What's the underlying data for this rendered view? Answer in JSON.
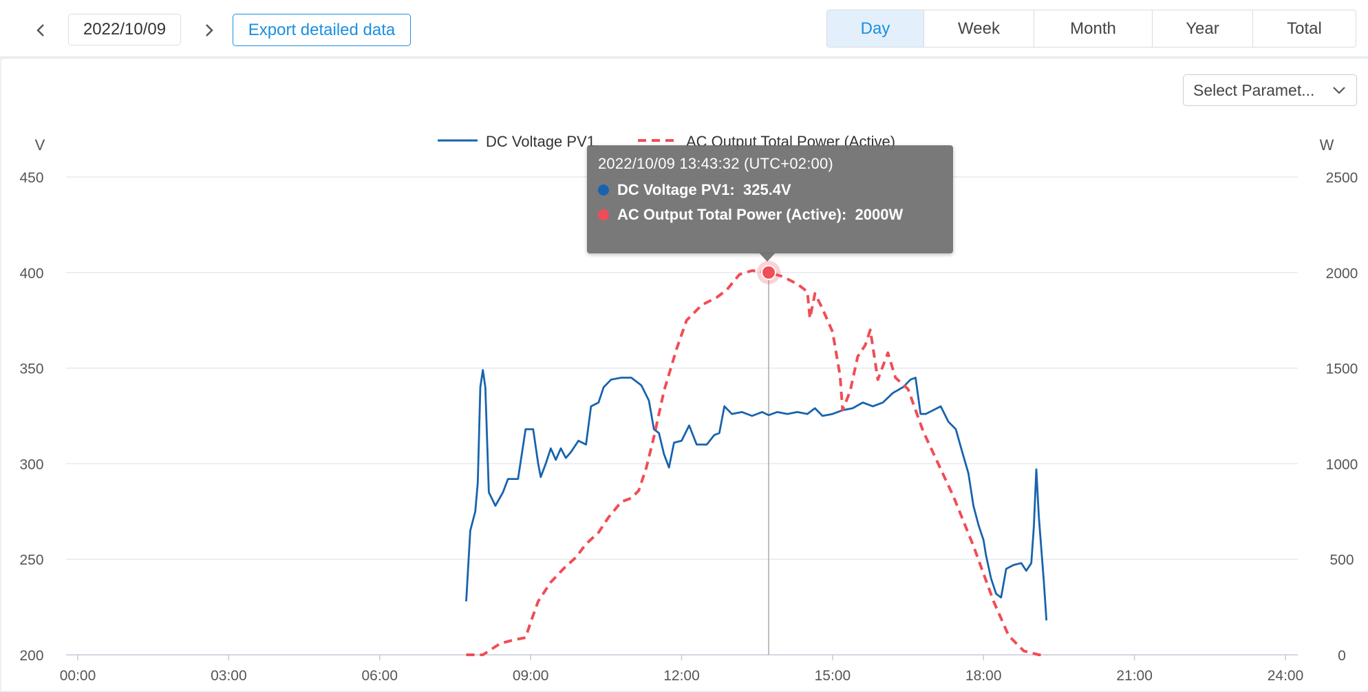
{
  "toolbar": {
    "date": "2022/10/09",
    "export_label": "Export detailed data",
    "period_tabs": [
      "Day",
      "Week",
      "Month",
      "Year",
      "Total"
    ],
    "active_period": "Day"
  },
  "param_select": {
    "label": "Select Paramet..."
  },
  "icons": {
    "prev": "chevron-left-icon",
    "next": "chevron-right-icon",
    "dropdown": "chevron-down-icon"
  },
  "chart_data": {
    "type": "line",
    "left_axis": {
      "unit": "V",
      "ticks": [
        450,
        400,
        350,
        300,
        250,
        200
      ],
      "ylim": [
        200,
        450
      ]
    },
    "right_axis": {
      "unit": "W",
      "ticks": [
        2500,
        2000,
        1500,
        1000,
        500,
        0
      ],
      "ylim": [
        0,
        2500
      ]
    },
    "x_axis": {
      "ticks": [
        "00:00",
        "03:00",
        "06:00",
        "09:00",
        "12:00",
        "15:00",
        "18:00",
        "21:00",
        "24:00"
      ],
      "xlim_hours": [
        0,
        24
      ]
    },
    "grid": true,
    "legend_position": "top-center",
    "series": [
      {
        "name": "DC Voltage PV1",
        "axis": "left",
        "color": "#1763ad",
        "style": "solid",
        "points": [
          [
            7.72,
            228
          ],
          [
            7.8,
            265
          ],
          [
            7.9,
            275
          ],
          [
            7.95,
            290
          ],
          [
            8.0,
            340
          ],
          [
            8.05,
            349
          ],
          [
            8.1,
            340
          ],
          [
            8.17,
            285
          ],
          [
            8.3,
            278
          ],
          [
            8.45,
            285
          ],
          [
            8.55,
            292
          ],
          [
            8.75,
            292
          ],
          [
            8.9,
            318
          ],
          [
            9.05,
            318
          ],
          [
            9.15,
            300
          ],
          [
            9.2,
            293
          ],
          [
            9.3,
            300
          ],
          [
            9.4,
            308
          ],
          [
            9.5,
            302
          ],
          [
            9.6,
            308
          ],
          [
            9.7,
            303
          ],
          [
            9.8,
            306
          ],
          [
            9.95,
            312
          ],
          [
            10.1,
            310
          ],
          [
            10.2,
            330
          ],
          [
            10.35,
            332
          ],
          [
            10.45,
            340
          ],
          [
            10.6,
            344
          ],
          [
            10.8,
            345
          ],
          [
            11.0,
            345
          ],
          [
            11.2,
            341
          ],
          [
            11.35,
            333
          ],
          [
            11.45,
            318
          ],
          [
            11.55,
            316
          ],
          [
            11.65,
            305
          ],
          [
            11.75,
            298
          ],
          [
            11.85,
            311
          ],
          [
            12.0,
            312
          ],
          [
            12.15,
            320
          ],
          [
            12.3,
            310
          ],
          [
            12.5,
            310
          ],
          [
            12.65,
            315
          ],
          [
            12.75,
            316
          ],
          [
            12.85,
            330
          ],
          [
            13.0,
            326
          ],
          [
            13.2,
            327
          ],
          [
            13.4,
            325
          ],
          [
            13.6,
            327
          ],
          [
            13.73,
            325.4
          ],
          [
            13.9,
            327
          ],
          [
            14.1,
            326
          ],
          [
            14.3,
            327
          ],
          [
            14.5,
            326
          ],
          [
            14.65,
            329
          ],
          [
            14.8,
            325
          ],
          [
            15.0,
            326
          ],
          [
            15.2,
            328
          ],
          [
            15.4,
            329
          ],
          [
            15.6,
            332
          ],
          [
            15.8,
            330
          ],
          [
            16.0,
            332
          ],
          [
            16.2,
            337
          ],
          [
            16.4,
            340
          ],
          [
            16.55,
            344
          ],
          [
            16.65,
            345
          ],
          [
            16.75,
            326
          ],
          [
            16.85,
            326
          ],
          [
            17.0,
            328
          ],
          [
            17.15,
            330
          ],
          [
            17.3,
            322
          ],
          [
            17.45,
            318
          ],
          [
            17.6,
            304
          ],
          [
            17.7,
            295
          ],
          [
            17.8,
            278
          ],
          [
            17.9,
            268
          ],
          [
            18.0,
            260
          ],
          [
            18.05,
            252
          ],
          [
            18.15,
            240
          ],
          [
            18.25,
            232
          ],
          [
            18.35,
            230
          ],
          [
            18.45,
            245
          ],
          [
            18.6,
            247
          ],
          [
            18.75,
            248
          ],
          [
            18.85,
            244
          ],
          [
            18.95,
            248
          ],
          [
            19.0,
            267
          ],
          [
            19.05,
            297
          ],
          [
            19.1,
            272
          ],
          [
            19.2,
            238
          ],
          [
            19.25,
            218
          ]
        ]
      },
      {
        "name": "AC Output Total Power (Active)",
        "axis": "right",
        "color": "#f04d56",
        "style": "dashed",
        "points": [
          [
            7.72,
            0
          ],
          [
            8.05,
            0
          ],
          [
            8.4,
            60
          ],
          [
            8.7,
            80
          ],
          [
            8.9,
            90
          ],
          [
            9.0,
            170
          ],
          [
            9.15,
            280
          ],
          [
            9.4,
            380
          ],
          [
            9.65,
            450
          ],
          [
            9.9,
            510
          ],
          [
            10.1,
            580
          ],
          [
            10.35,
            640
          ],
          [
            10.55,
            720
          ],
          [
            10.8,
            800
          ],
          [
            11.0,
            820
          ],
          [
            11.15,
            860
          ],
          [
            11.3,
            980
          ],
          [
            11.45,
            1140
          ],
          [
            11.65,
            1380
          ],
          [
            11.9,
            1600
          ],
          [
            12.1,
            1750
          ],
          [
            12.4,
            1830
          ],
          [
            12.7,
            1870
          ],
          [
            12.9,
            1910
          ],
          [
            13.15,
            1990
          ],
          [
            13.4,
            2010
          ],
          [
            13.73,
            2000
          ],
          [
            14.0,
            1980
          ],
          [
            14.3,
            1940
          ],
          [
            14.5,
            1900
          ],
          [
            14.55,
            1760
          ],
          [
            14.65,
            1890
          ],
          [
            14.8,
            1810
          ],
          [
            15.0,
            1690
          ],
          [
            15.15,
            1460
          ],
          [
            15.2,
            1280
          ],
          [
            15.35,
            1380
          ],
          [
            15.5,
            1560
          ],
          [
            15.65,
            1620
          ],
          [
            15.75,
            1700
          ],
          [
            15.9,
            1440
          ],
          [
            16.1,
            1580
          ],
          [
            16.25,
            1450
          ],
          [
            16.5,
            1390
          ],
          [
            16.8,
            1170
          ],
          [
            17.1,
            1000
          ],
          [
            17.4,
            830
          ],
          [
            17.8,
            570
          ],
          [
            18.2,
            280
          ],
          [
            18.5,
            100
          ],
          [
            18.8,
            20
          ],
          [
            19.1,
            0
          ],
          [
            19.25,
            0
          ]
        ]
      }
    ],
    "highlight": {
      "time_label": "2022/10/09 13:43:32 (UTC+02:00)",
      "x_hours": 13.73,
      "rows": [
        {
          "name": "DC Voltage PV1",
          "value": "325.4V",
          "color": "#1763ad"
        },
        {
          "name": "AC Output Total Power (Active)",
          "value": "2000W",
          "color": "#f04d56"
        }
      ],
      "marker_value_w": 2000
    }
  }
}
